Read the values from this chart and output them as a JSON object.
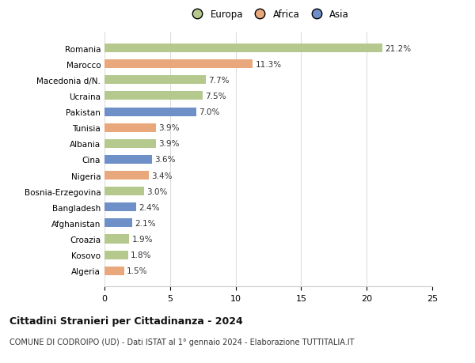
{
  "countries": [
    "Algeria",
    "Kosovo",
    "Croazia",
    "Afghanistan",
    "Bangladesh",
    "Bosnia-Erzegovina",
    "Nigeria",
    "Cina",
    "Albania",
    "Tunisia",
    "Pakistan",
    "Ucraina",
    "Macedonia d/N.",
    "Marocco",
    "Romania"
  ],
  "values": [
    1.5,
    1.8,
    1.9,
    2.1,
    2.4,
    3.0,
    3.4,
    3.6,
    3.9,
    3.9,
    7.0,
    7.5,
    7.7,
    11.3,
    21.2
  ],
  "colors": [
    "#e8a87c",
    "#b5c98e",
    "#b5c98e",
    "#6e8fc7",
    "#6e8fc7",
    "#b5c98e",
    "#e8a87c",
    "#6e8fc7",
    "#b5c98e",
    "#e8a87c",
    "#6e8fc7",
    "#b5c98e",
    "#b5c98e",
    "#e8a87c",
    "#b5c98e"
  ],
  "legend_labels": [
    "Europa",
    "Africa",
    "Asia"
  ],
  "legend_colors": [
    "#b5c98e",
    "#e8a87c",
    "#6e8fc7"
  ],
  "title": "Cittadini Stranieri per Cittadinanza - 2024",
  "subtitle": "COMUNE DI CODROIPO (UD) - Dati ISTAT al 1° gennaio 2024 - Elaborazione TUTTITALIA.IT",
  "xlim": [
    0,
    25
  ],
  "xticks": [
    0,
    5,
    10,
    15,
    20,
    25
  ],
  "background_color": "#ffffff",
  "bar_height": 0.55,
  "grid_color": "#dddddd",
  "label_fontsize": 7.5,
  "ytick_fontsize": 7.5,
  "xtick_fontsize": 8.0
}
